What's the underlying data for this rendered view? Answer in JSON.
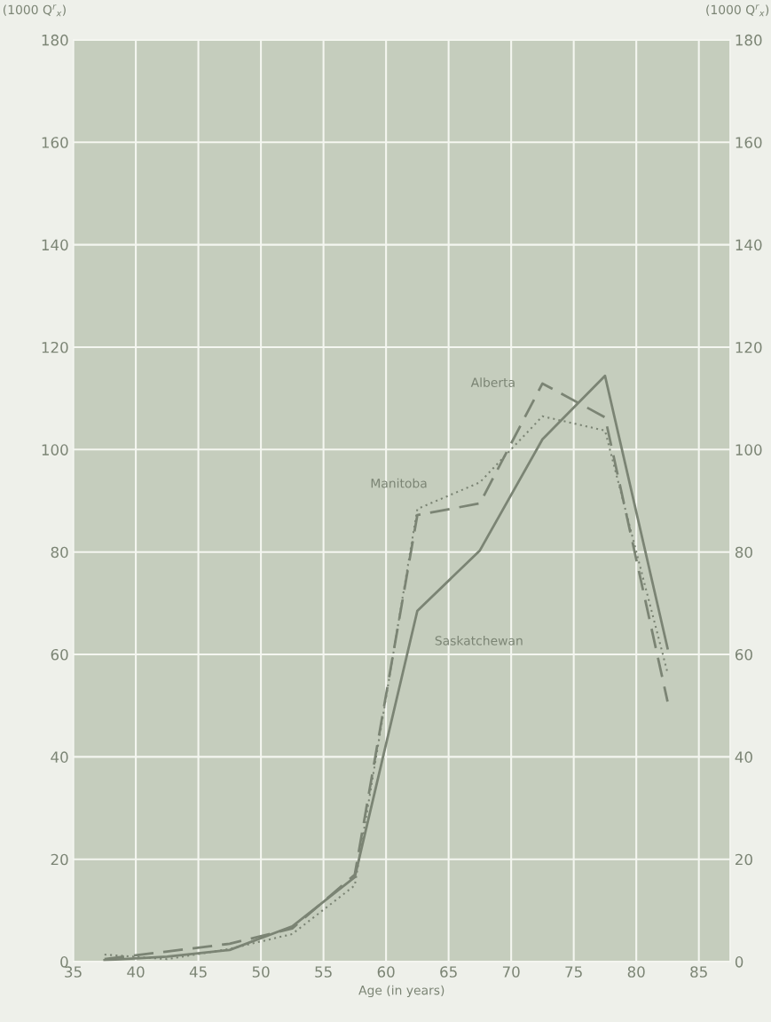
{
  "chart_data": {
    "type": "line",
    "x": [
      37.5,
      42.5,
      47.5,
      52.5,
      57.5,
      62.5,
      67.5,
      72.5,
      77.5,
      82.5
    ],
    "series": [
      {
        "name": "Alberta",
        "color": "#7b8474",
        "line_style": "dashed",
        "values": [
          0.5,
          2,
          3.5,
          6.5,
          17,
          87.2,
          89.5,
          112.9,
          106.3,
          50.8
        ]
      },
      {
        "name": "Manitoba",
        "color": "#7b8474",
        "line_style": "dotted",
        "values": [
          1.4,
          0.5,
          2.5,
          5.4,
          14.9,
          88.4,
          93.6,
          106.5,
          103.7,
          56.4
        ]
      },
      {
        "name": "Saskatchewan",
        "color": "#7b8474",
        "line_style": "solid",
        "values": [
          0.3,
          1,
          2.3,
          6.9,
          16.5,
          68.5,
          80.3,
          102,
          114.4,
          61.2
        ]
      }
    ],
    "xlabel": "Age (in years)",
    "ylabel": "(1000 Q$^{r}$$_{x}$)",
    "y2label": "(1000 Q$^{r}$$_{x}$)",
    "xlim": [
      35,
      87.5
    ],
    "xticks": [
      35,
      40,
      45,
      50,
      55,
      60,
      65,
      70,
      75,
      80,
      85
    ],
    "ylim": [
      0,
      180
    ],
    "yticks": [
      0,
      20,
      40,
      60,
      80,
      100,
      120,
      140,
      160,
      180
    ],
    "y2lim": [
      0,
      180
    ],
    "y2ticks": [
      0,
      20,
      40,
      60,
      80,
      100,
      120,
      140,
      160,
      180
    ],
    "grid": true,
    "marker": "none",
    "legend": false
  }
}
